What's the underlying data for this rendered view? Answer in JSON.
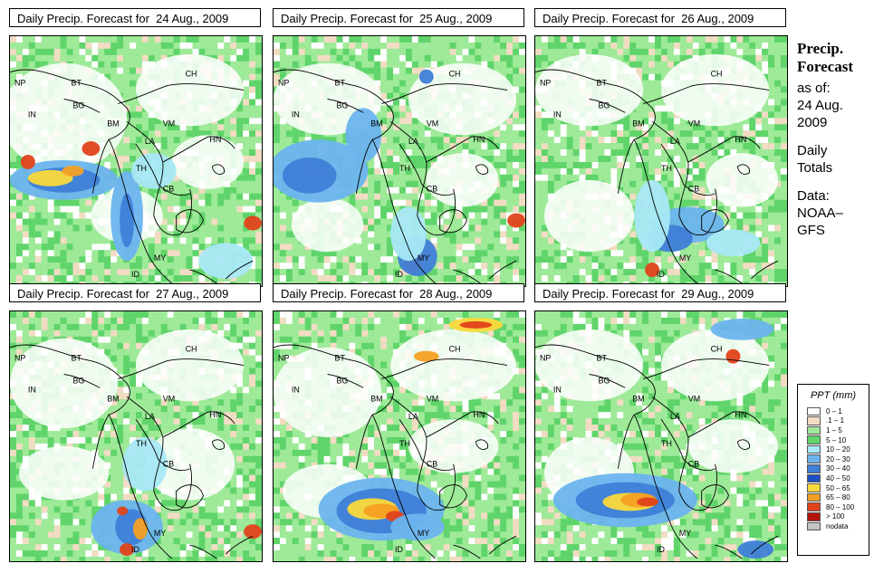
{
  "panels": [
    {
      "title": "Daily Precip. Forecast for  24 Aug., 2009",
      "variant": 0
    },
    {
      "title": "Daily Precip. Forecast for  25 Aug., 2009",
      "variant": 1
    },
    {
      "title": "Daily Precip. Forecast for  26 Aug., 2009",
      "variant": 2
    },
    {
      "title": "Daily Precip. Forecast for  27 Aug., 2009",
      "variant": 3
    },
    {
      "title": "Daily Precip. Forecast for  28 Aug., 2009",
      "variant": 4
    },
    {
      "title": "Daily Precip. Forecast for  29 Aug., 2009",
      "variant": 5
    }
  ],
  "country_labels": [
    "NP",
    "BT",
    "IN",
    "BG",
    "BM",
    "CH",
    "VM",
    "LA",
    "TH",
    "CB",
    "HN",
    "MY",
    "ID"
  ],
  "side": {
    "title1": "Precip.",
    "title2": "Forecast",
    "line1": "as of:",
    "line2": "24 Aug.",
    "line3": "2009",
    "line4": "Daily",
    "line5": "Totals",
    "line6": "Data:",
    "line7": "NOAA–",
    "line8": "GFS"
  },
  "legend": {
    "title": "PPT (mm)",
    "classes": [
      {
        "label": "0 – 1",
        "color": "#ffffff"
      },
      {
        "label": ".1 – 1",
        "color": "#f2dcc3"
      },
      {
        "label": "1 – 5",
        "color": "#9eea98"
      },
      {
        "label": "5 – 10",
        "color": "#5fd46a"
      },
      {
        "label": "10 – 20",
        "color": "#a8e8f5"
      },
      {
        "label": "20 – 30",
        "color": "#6cb4ee"
      },
      {
        "label": "30 – 40",
        "color": "#3f7fd8"
      },
      {
        "label": "40 – 50",
        "color": "#1f4fc4"
      },
      {
        "label": "50 – 65",
        "color": "#fbd93a"
      },
      {
        "label": "65 – 80",
        "color": "#f5a023"
      },
      {
        "label": "80 – 100",
        "color": "#e0421a"
      },
      {
        "label": "> 100",
        "color": "#b5120e"
      },
      {
        "label": "nodata",
        "color": "#c4c4c4"
      }
    ]
  }
}
